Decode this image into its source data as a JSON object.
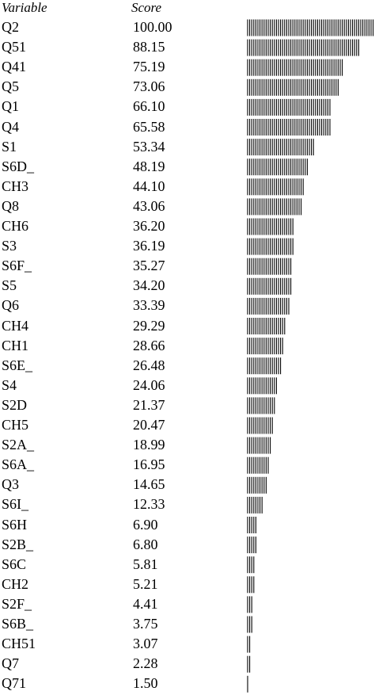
{
  "chart_data": {
    "type": "bar",
    "orientation": "horizontal",
    "header": {
      "variable": "Variable",
      "score": "Score"
    },
    "categories": [
      "Q2",
      "Q51",
      "Q41",
      "Q5",
      "Q1",
      "Q4",
      "S1",
      "S6D_",
      "CH3",
      "Q8",
      "CH6",
      "S3",
      "S6F_",
      "S5",
      "Q6",
      "CH4",
      "CH1",
      "S6E_",
      "S4",
      "S2D",
      "CH5",
      "S2A_",
      "S6A_",
      "Q3",
      "S6I_",
      "S6H",
      "S2B_",
      "S6C",
      "CH2",
      "S2F_",
      "S6B_",
      "CH51",
      "Q7",
      "Q71"
    ],
    "values": [
      100.0,
      88.15,
      75.19,
      73.06,
      66.1,
      65.58,
      53.34,
      48.19,
      44.1,
      43.06,
      36.2,
      36.19,
      35.27,
      34.2,
      33.39,
      29.29,
      28.66,
      26.48,
      24.06,
      21.37,
      20.47,
      18.99,
      16.95,
      14.65,
      12.33,
      6.9,
      6.8,
      5.81,
      5.21,
      4.41,
      3.75,
      3.07,
      2.28,
      1.5
    ],
    "value_labels": [
      "100.00",
      "88.15",
      "75.19",
      "73.06",
      "66.10",
      "65.58",
      "53.34",
      "48.19",
      "44.10",
      "43.06",
      "36.20",
      "36.19",
      "35.27",
      "34.20",
      "33.39",
      "29.29",
      "28.66",
      "26.48",
      "24.06",
      "21.37",
      "20.47",
      "18.99",
      "16.95",
      "14.65",
      "12.33",
      "6.90",
      "6.80",
      "5.81",
      "5.21",
      "4.41",
      "3.75",
      "3.07",
      "2.28",
      "1.50"
    ],
    "xlim": [
      0,
      100
    ],
    "bar_fill": "vertical-hatch",
    "colors": {
      "text": "#000000",
      "bar": "#000000",
      "background": "#ffffff"
    }
  }
}
